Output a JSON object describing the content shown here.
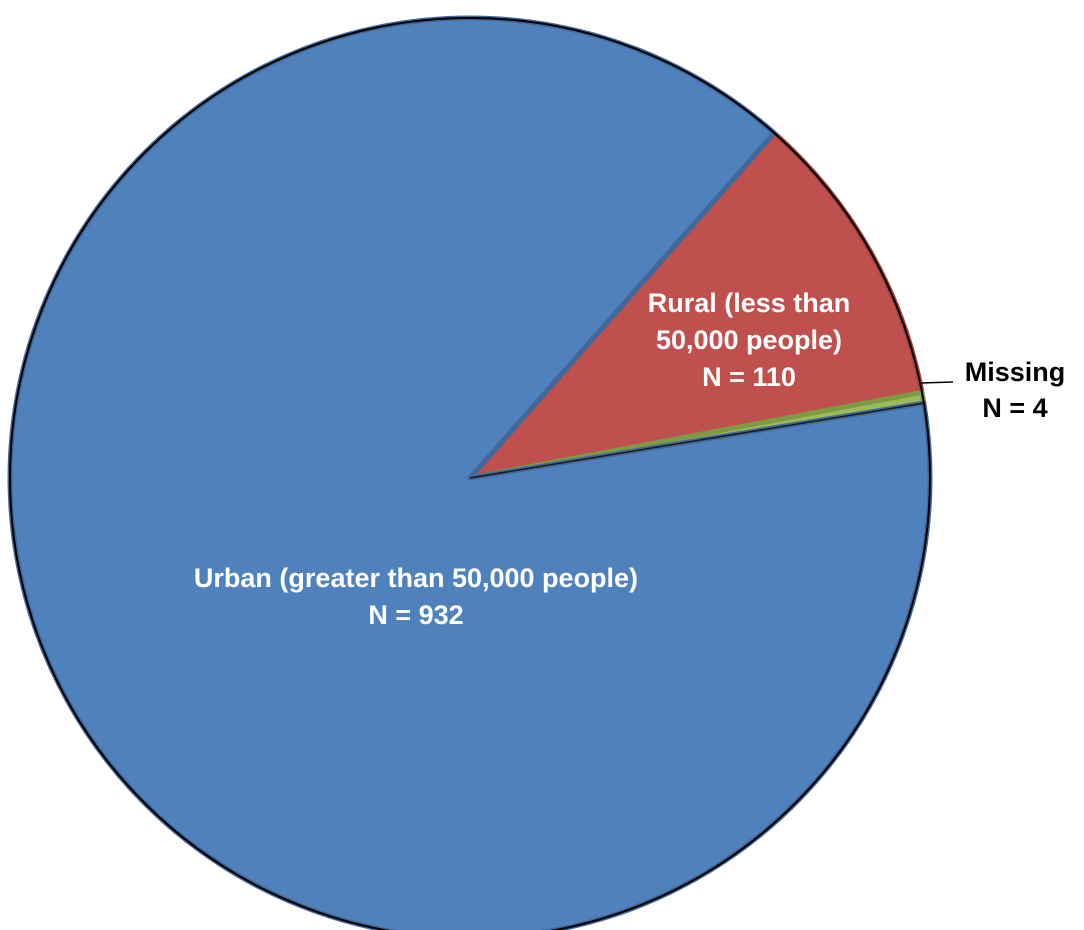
{
  "chart_data": {
    "type": "pie",
    "title": "",
    "slices": [
      {
        "name": "Rural (less than 50,000 people)",
        "count_label": "N = 110",
        "value": 110,
        "color": "#C0504D",
        "stroke": "#A5423F"
      },
      {
        "name": "Missing",
        "count_label": "N = 4",
        "value": 4,
        "color": "#9BBB59",
        "stroke": "#7E9A44"
      },
      {
        "name": "Urban (greater than 50,000 people)",
        "count_label": "N = 932",
        "value": 932,
        "color": "#4F81BD",
        "stroke": "#41689A"
      }
    ],
    "labels": {
      "rural_line1": "Rural (less than",
      "rural_line2": "50,000 people)",
      "rural_line3": "N = 110",
      "missing_line1": "Missing",
      "missing_line2": "N = 4",
      "urban_line1": "Urban (greater than 50,000 people)",
      "urban_line2": "N = 932"
    },
    "start_angle_deg": 41.4,
    "direction": "clockwise",
    "outline_color": "#000000",
    "label_color_inside": "#FFFFFF",
    "label_color_outside": "#000000"
  }
}
